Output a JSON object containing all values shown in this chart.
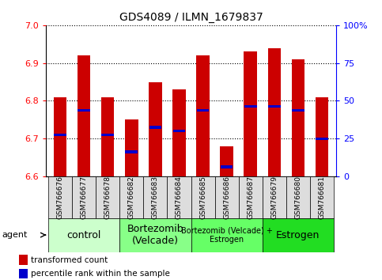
{
  "title": "GDS4089 / ILMN_1679837",
  "samples": [
    "GSM766676",
    "GSM766677",
    "GSM766678",
    "GSM766682",
    "GSM766683",
    "GSM766684",
    "GSM766685",
    "GSM766686",
    "GSM766687",
    "GSM766679",
    "GSM766680",
    "GSM766681"
  ],
  "bar_values": [
    6.81,
    6.92,
    6.81,
    6.75,
    6.85,
    6.83,
    6.92,
    6.68,
    6.93,
    6.94,
    6.91,
    6.81
  ],
  "blue_values": [
    6.71,
    6.775,
    6.71,
    6.665,
    6.73,
    6.72,
    6.775,
    6.625,
    6.785,
    6.785,
    6.775,
    6.7
  ],
  "bar_bottom": 6.6,
  "ylim_min": 6.6,
  "ylim_max": 7.0,
  "yticks_left": [
    6.6,
    6.7,
    6.8,
    6.9,
    7.0
  ],
  "yticks_right_vals": [
    0,
    25,
    50,
    75,
    100
  ],
  "yticks_right_labels": [
    "0",
    "25",
    "50",
    "75",
    "100%"
  ],
  "bar_color": "#cc0000",
  "blue_color": "#0000cc",
  "groups": [
    {
      "label": "control",
      "start": 0,
      "end": 3,
      "color": "#ccffcc",
      "fontsize": 9
    },
    {
      "label": "Bortezomib\n(Velcade)",
      "start": 3,
      "end": 6,
      "color": "#88ff88",
      "fontsize": 9
    },
    {
      "label": "Bortezomib (Velcade) +\nEstrogen",
      "start": 6,
      "end": 9,
      "color": "#66ff66",
      "fontsize": 7
    },
    {
      "label": "Estrogen",
      "start": 9,
      "end": 12,
      "color": "#22dd22",
      "fontsize": 9
    }
  ],
  "xlabel_agent": "agent",
  "legend_red": "transformed count",
  "legend_blue": "percentile rank within the sample",
  "bar_width": 0.55,
  "sample_box_color": "#dddddd",
  "bg_color": "#ffffff"
}
